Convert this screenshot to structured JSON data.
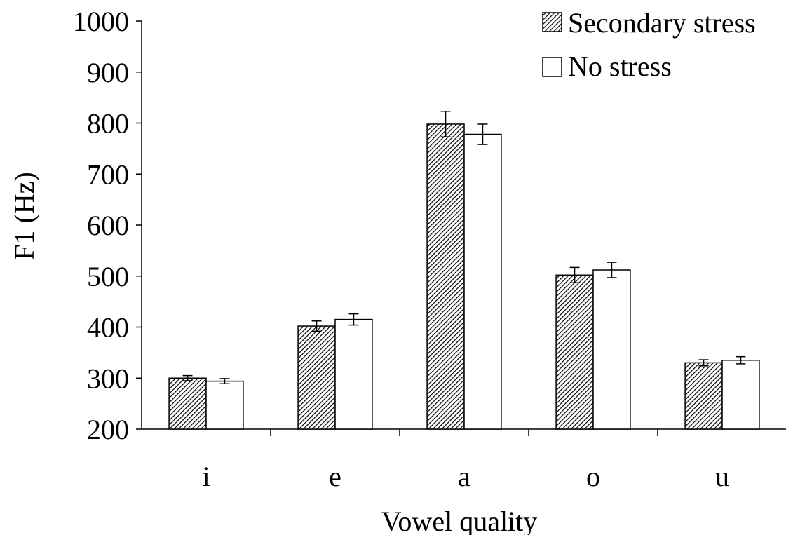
{
  "chart_data": {
    "type": "bar",
    "xlabel": "Vowel quality",
    "ylabel": "F1 (Hz)",
    "ylim": [
      200,
      1000
    ],
    "yticks": [
      200,
      300,
      400,
      500,
      600,
      700,
      800,
      900,
      1000
    ],
    "categories": [
      "i",
      "e",
      "a",
      "o",
      "u"
    ],
    "series": [
      {
        "name": "Secondary stress",
        "pattern": "diagonal-hatch",
        "values": [
          300,
          402,
          798,
          502,
          330
        ],
        "errors": [
          5,
          10,
          25,
          15,
          6
        ]
      },
      {
        "name": "No stress",
        "pattern": "solid-white",
        "values": [
          294,
          415,
          778,
          512,
          335
        ],
        "errors": [
          5,
          11,
          20,
          15,
          7
        ]
      }
    ],
    "legend": "top-right",
    "grid": false
  }
}
